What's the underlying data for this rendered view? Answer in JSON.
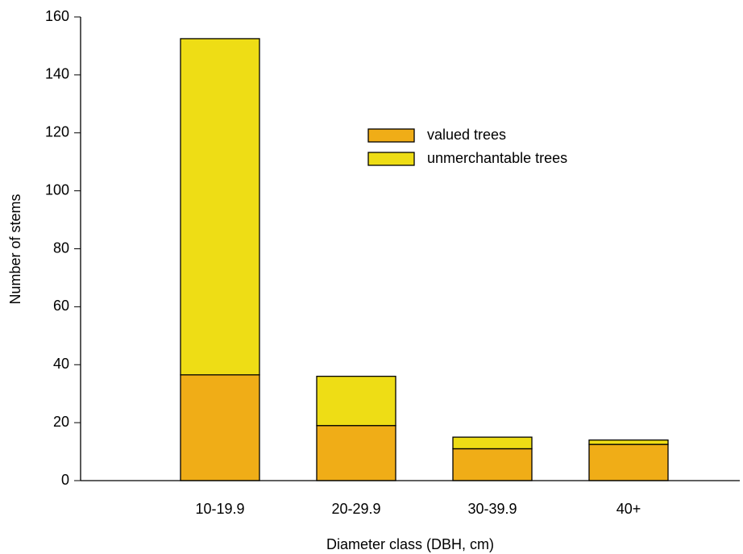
{
  "chart_data": {
    "type": "stacked_bar",
    "categories": [
      "10-19.9",
      "20-29.9",
      "30-39.9",
      "40+"
    ],
    "series": [
      {
        "name": "valued trees",
        "color": "#f0ad17",
        "values": [
          36.5,
          19,
          11,
          12.5
        ]
      },
      {
        "name": "unmerchantable trees",
        "color": "#eedd15",
        "values": [
          116,
          17,
          4,
          1.5
        ]
      }
    ],
    "xlabel": "Diameter class (DBH, cm)",
    "ylabel": "Number of stems",
    "ylim": [
      0,
      160
    ],
    "yticks": [
      0,
      20,
      40,
      60,
      80,
      100,
      120,
      140,
      160
    ],
    "legend": "upper right"
  }
}
